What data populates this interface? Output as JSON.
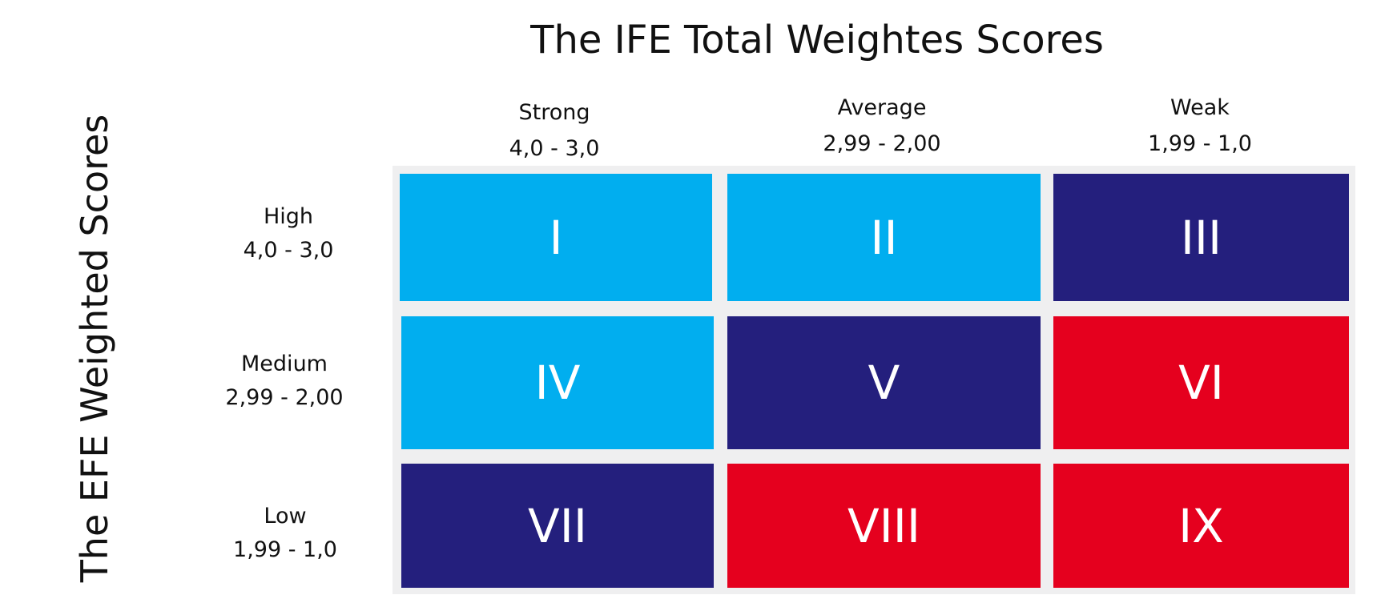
{
  "title": "The IFE Total Weightes Scores",
  "y_axis_title": "The EFE Weighted Scores",
  "colors": {
    "light_blue": "#01aeef",
    "navy": "#241f7d",
    "red": "#e5001e",
    "grid_background": "#efeff0"
  },
  "columns": [
    {
      "label": "Strong",
      "range": "4,0 - 3,0"
    },
    {
      "label": "Average",
      "range": "2,99 - 2,00"
    },
    {
      "label": "Weak",
      "range": "1,99 - 1,0"
    }
  ],
  "rows": [
    {
      "label": "High",
      "range": "4,0 - 3,0"
    },
    {
      "label": "Medium",
      "range": "2,99 - 2,00"
    },
    {
      "label": "Low",
      "range": "1,99 - 1,0"
    }
  ],
  "cells": [
    {
      "label": "I",
      "color": "light_blue"
    },
    {
      "label": "II",
      "color": "light_blue"
    },
    {
      "label": "III",
      "color": "navy"
    },
    {
      "label": "IV",
      "color": "light_blue"
    },
    {
      "label": "V",
      "color": "navy"
    },
    {
      "label": "VI",
      "color": "red"
    },
    {
      "label": "VII",
      "color": "navy"
    },
    {
      "label": "VIII",
      "color": "red"
    },
    {
      "label": "IX",
      "color": "red"
    }
  ]
}
